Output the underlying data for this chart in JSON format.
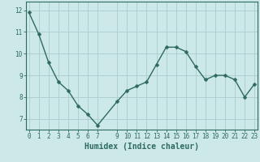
{
  "x": [
    0,
    1,
    2,
    3,
    4,
    5,
    6,
    7,
    9,
    10,
    11,
    12,
    13,
    14,
    15,
    16,
    17,
    18,
    19,
    20,
    21,
    22,
    23
  ],
  "y": [
    11.9,
    10.9,
    9.6,
    8.7,
    8.3,
    7.6,
    7.2,
    6.7,
    7.8,
    8.3,
    8.5,
    8.7,
    9.5,
    10.3,
    10.3,
    10.1,
    9.4,
    8.8,
    9.0,
    9.0,
    8.8,
    8.0,
    8.6
  ],
  "line_color": "#2e6b5e",
  "marker_color": "#2e6b5e",
  "bg_color": "#cce8e8",
  "grid_color": "#aacccc",
  "xlabel": "Humidex (Indice chaleur)",
  "xlim": [
    -0.3,
    23.3
  ],
  "ylim": [
    6.5,
    12.4
  ],
  "yticks": [
    7,
    8,
    9,
    10,
    11,
    12
  ],
  "xticks": [
    0,
    1,
    2,
    3,
    4,
    5,
    6,
    7,
    9,
    10,
    11,
    12,
    13,
    14,
    15,
    16,
    17,
    18,
    19,
    20,
    21,
    22,
    23
  ],
  "tick_fontsize": 5.5,
  "label_fontsize": 7.0,
  "line_width": 1.0,
  "marker_size": 2.5
}
